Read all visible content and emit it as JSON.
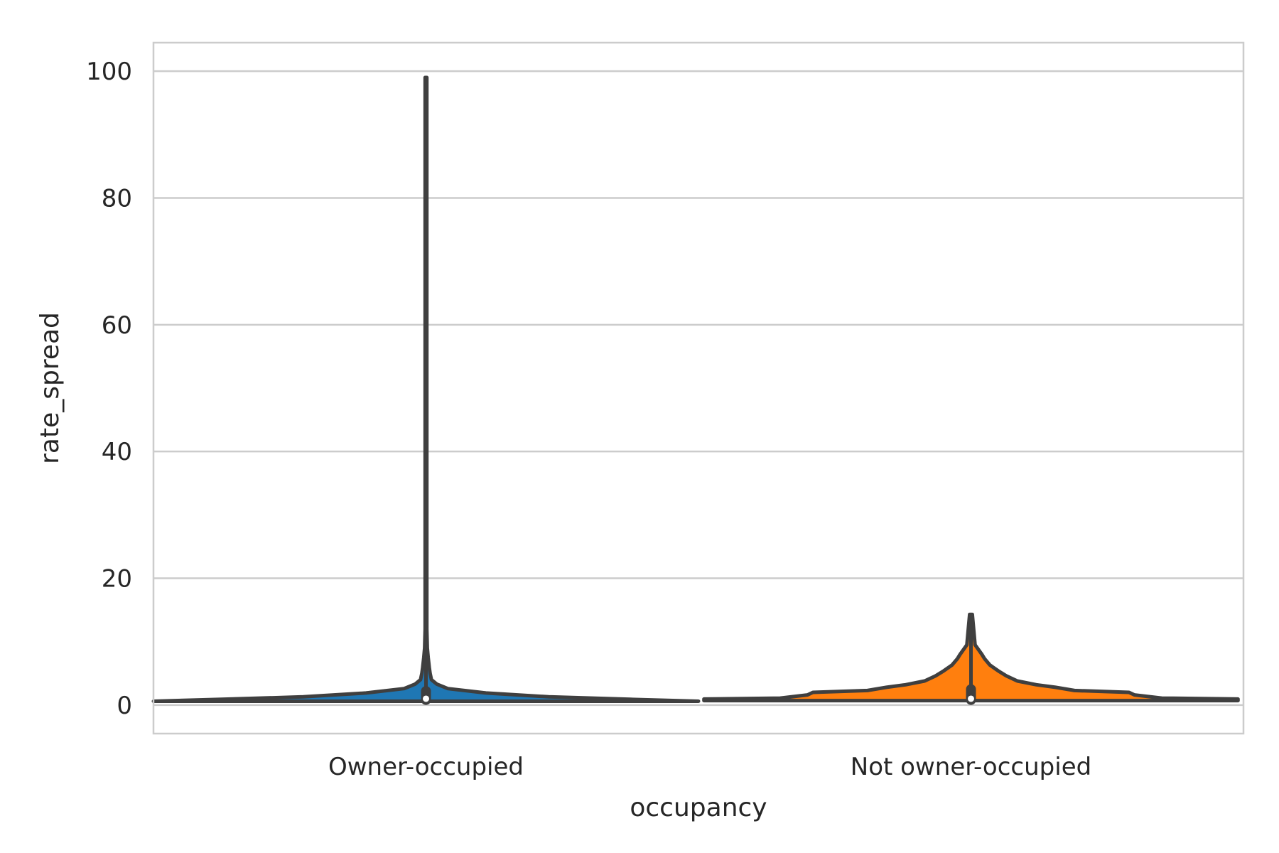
{
  "chart_data": {
    "type": "violin",
    "title": "",
    "xlabel": "occupancy",
    "ylabel": "rate_spread",
    "categories": [
      "Owner-occupied",
      "Not owner-occupied"
    ],
    "ylim": [
      -4.5,
      104.5
    ],
    "yticks": [
      0,
      20,
      40,
      60,
      80,
      100
    ],
    "grid": true,
    "legend": "none",
    "series": [
      {
        "category": "Owner-occupied",
        "color": "#1f77b4",
        "min": 0.6,
        "max": 99.0,
        "median": 1.0,
        "q1": 0.8,
        "q3": 2.2,
        "density": [
          [
            0.6,
            1.0
          ],
          [
            0.9,
            0.75
          ],
          [
            1.3,
            0.45
          ],
          [
            1.9,
            0.22
          ],
          [
            2.6,
            0.08
          ],
          [
            3.3,
            0.04
          ],
          [
            4.0,
            0.02
          ],
          [
            5.0,
            0.015
          ],
          [
            6.0,
            0.012
          ],
          [
            7.5,
            0.008
          ],
          [
            9.0,
            0.005
          ],
          [
            12.0,
            0.003
          ],
          [
            99.0,
            0.003
          ]
        ]
      },
      {
        "category": "Not owner-occupied",
        "color": "#ff7f0e",
        "min": 0.7,
        "max": 14.3,
        "median": 1.0,
        "q1": 0.8,
        "q3": 2.5,
        "density": [
          [
            0.7,
            0.98
          ],
          [
            0.95,
            0.98
          ],
          [
            1.1,
            0.7
          ],
          [
            1.6,
            0.6
          ],
          [
            2.0,
            0.58
          ],
          [
            2.3,
            0.38
          ],
          [
            2.8,
            0.31
          ],
          [
            3.2,
            0.24
          ],
          [
            3.8,
            0.17
          ],
          [
            4.6,
            0.13
          ],
          [
            5.4,
            0.1
          ],
          [
            6.3,
            0.07
          ],
          [
            7.3,
            0.05
          ],
          [
            8.0,
            0.04
          ],
          [
            9.5,
            0.015
          ],
          [
            14.3,
            0.005
          ]
        ]
      }
    ]
  }
}
